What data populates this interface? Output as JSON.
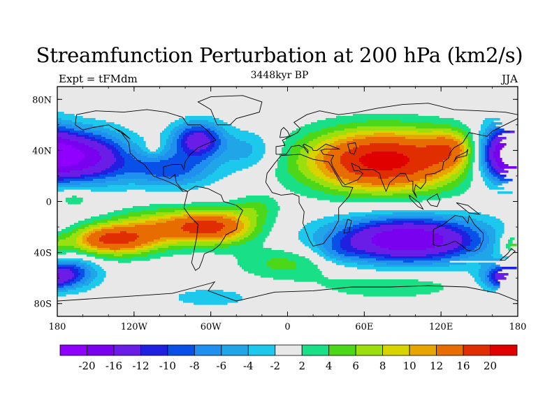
{
  "title": "Streamfunction Perturbation at 200 hPa (km2/s)",
  "subtitle": "3448kyr BP",
  "left_label": "Expt = tFMdm",
  "right_label": "JJA",
  "axes": {
    "lon_range": [
      -180,
      180
    ],
    "lat_range": [
      -90,
      90
    ],
    "lon_ticks": [
      {
        "value": -180,
        "label": "180"
      },
      {
        "value": -120,
        "label": "120W"
      },
      {
        "value": -60,
        "label": "60W"
      },
      {
        "value": 0,
        "label": "0"
      },
      {
        "value": 60,
        "label": "60E"
      },
      {
        "value": 120,
        "label": "120E"
      },
      {
        "value": 180,
        "label": "180"
      }
    ],
    "lat_ticks": [
      {
        "value": 80,
        "label": "80N"
      },
      {
        "value": 40,
        "label": "40N"
      },
      {
        "value": 0,
        "label": "0"
      },
      {
        "value": -40,
        "label": "40S"
      },
      {
        "value": -80,
        "label": "80S"
      }
    ]
  },
  "colorbar": {
    "colors": [
      "#8f00ff",
      "#7a00f0",
      "#6a1de6",
      "#2020e0",
      "#0850e8",
      "#1f8ff0",
      "#20a5e8",
      "#1cc8ec",
      "#e8e8e8",
      "#19e087",
      "#4cd818",
      "#9be00e",
      "#d8d400",
      "#e8a500",
      "#e86d00",
      "#e02e00",
      "#e00000"
    ],
    "labels": [
      "-20",
      "-16",
      "-12",
      "-10",
      "-8",
      "-6",
      "-4",
      "-2",
      "2",
      "4",
      "6",
      "8",
      "10",
      "12",
      "16",
      "20"
    ]
  },
  "anomalies": [
    {
      "lon": 75,
      "lat": 32,
      "value": 22,
      "rlon": 60,
      "rlat": 24
    },
    {
      "lon": 128,
      "lat": 42,
      "value": 8,
      "rlon": 20,
      "rlat": 14
    },
    {
      "lon": -62,
      "lat": -20,
      "value": 18,
      "rlon": 35,
      "rlat": 13
    },
    {
      "lon": -140,
      "lat": -30,
      "value": 16,
      "rlon": 32,
      "rlat": 12
    },
    {
      "lon": -110,
      "lat": -22,
      "value": 7,
      "rlon": 30,
      "rlat": 16
    },
    {
      "lon": -25,
      "lat": -5,
      "value": 4,
      "rlon": 18,
      "rlat": 10
    },
    {
      "lon": -168,
      "lat": 3,
      "value": 4,
      "rlon": 18,
      "rlat": 8
    },
    {
      "lon": 0,
      "lat": -48,
      "value": 5,
      "rlon": 40,
      "rlat": 13
    },
    {
      "lon": 80,
      "lat": -66,
      "value": 4,
      "rlon": 55,
      "rlat": 10
    },
    {
      "lon": -60,
      "lat": -75,
      "value": -3,
      "rlon": 40,
      "rlat": 9
    },
    {
      "lon": 178,
      "lat": -35,
      "value": 6,
      "rlon": 12,
      "rlat": 10
    },
    {
      "lon": -105,
      "lat": 42,
      "value": 3,
      "rlon": 7,
      "rlat": 6
    },
    {
      "lon": 94,
      "lat": -30,
      "value": -20,
      "rlon": 60,
      "rlat": 18
    },
    {
      "lon": -160,
      "lat": 35,
      "value": -18,
      "rlon": 35,
      "rlat": 20
    },
    {
      "lon": -70,
      "lat": 48,
      "value": -14,
      "rlon": 20,
      "rlat": 14
    },
    {
      "lon": -92,
      "lat": 25,
      "value": -9,
      "rlon": 35,
      "rlat": 14
    },
    {
      "lon": -30,
      "lat": 40,
      "value": -5,
      "rlon": 22,
      "rlat": 16
    },
    {
      "lon": 170,
      "lat": 38,
      "value": -16,
      "rlon": 22,
      "rlat": 22
    },
    {
      "lon": -170,
      "lat": -56,
      "value": -10,
      "rlon": 22,
      "rlat": 12
    },
    {
      "lon": 170,
      "lat": -60,
      "value": -12,
      "rlon": 18,
      "rlat": 10
    },
    {
      "lon": 40,
      "lat": -40,
      "value": -3,
      "rlon": 18,
      "rlat": 9
    }
  ],
  "color_levels": [
    -20,
    -16,
    -12,
    -10,
    -8,
    -6,
    -4,
    -2,
    2,
    4,
    6,
    8,
    10,
    12,
    16,
    20
  ]
}
